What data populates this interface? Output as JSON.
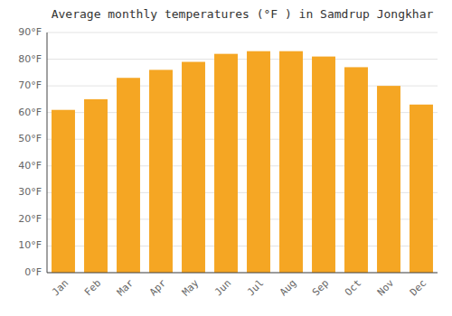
{
  "chart_data": {
    "type": "bar",
    "title": "Average monthly temperatures (°F ) in Samdrup Jongkhar",
    "categories": [
      "Jan",
      "Feb",
      "Mar",
      "Apr",
      "May",
      "Jun",
      "Jul",
      "Aug",
      "Sep",
      "Oct",
      "Nov",
      "Dec"
    ],
    "values": [
      61,
      65,
      73,
      76,
      79,
      82,
      83,
      83,
      81,
      77,
      70,
      63
    ],
    "color": "#F5A623",
    "ylim": [
      0,
      90
    ],
    "yticks": [
      {
        "value": 0,
        "label": "0°F"
      },
      {
        "value": 10,
        "label": "10°F"
      },
      {
        "value": 20,
        "label": "20°F"
      },
      {
        "value": 30,
        "label": "30°F"
      },
      {
        "value": 40,
        "label": "40°F"
      },
      {
        "value": 50,
        "label": "50°F"
      },
      {
        "value": 60,
        "label": "60°F"
      },
      {
        "value": 70,
        "label": "70°F"
      },
      {
        "value": 80,
        "label": "80°F"
      },
      {
        "value": 90,
        "label": "90°F"
      }
    ],
    "grid": true
  }
}
